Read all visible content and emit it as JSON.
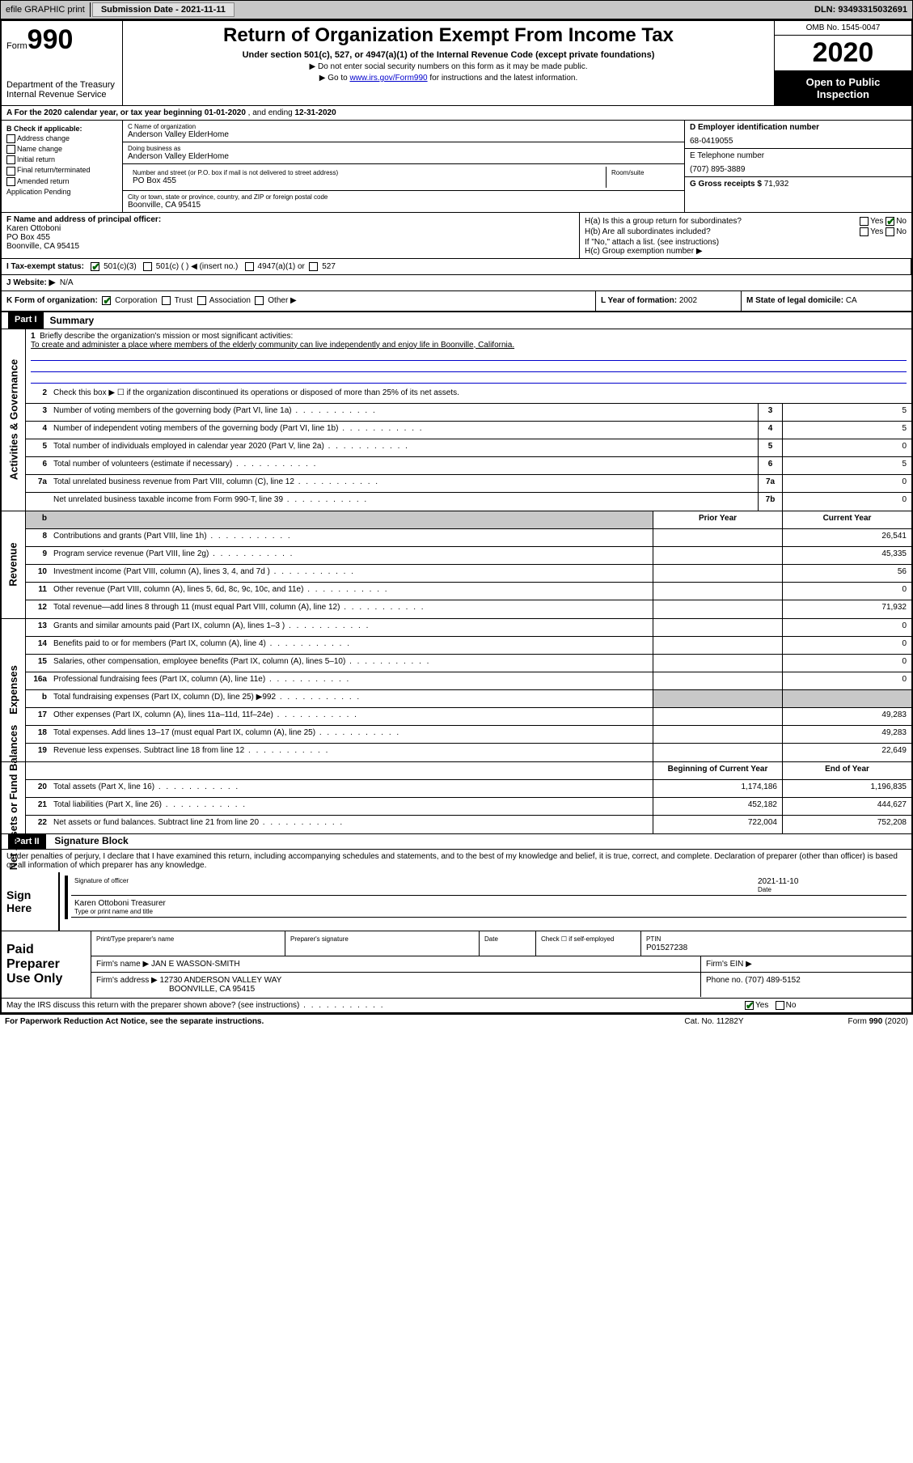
{
  "topbar": {
    "efile": "efile GRAPHIC print",
    "subdate_label": "Submission Date - ",
    "subdate": "2021-11-11",
    "dln_label": "DLN: ",
    "dln": "93493315032691"
  },
  "header": {
    "form_small": "Form",
    "form_big": "990",
    "dept1": "Department of the Treasury",
    "dept2": "Internal Revenue Service",
    "title": "Return of Organization Exempt From Income Tax",
    "subtitle": "Under section 501(c), 527, or 4947(a)(1) of the Internal Revenue Code (except private foundations)",
    "note1": "▶ Do not enter social security numbers on this form as it may be made public.",
    "note2_a": "▶ Go to ",
    "note2_link": "www.irs.gov/Form990",
    "note2_b": " for instructions and the latest information.",
    "omb": "OMB No. 1545-0047",
    "year": "2020",
    "open": "Open to Public Inspection"
  },
  "secA": {
    "text_a": "A For the 2020 calendar year, or tax year beginning ",
    "begin": "01-01-2020",
    "text_b": " , and ending ",
    "end": "12-31-2020"
  },
  "secB": {
    "label": "B Check if applicable:",
    "items": [
      "Address change",
      "Name change",
      "Initial return",
      "Final return/terminated",
      "Amended return",
      "Application Pending"
    ]
  },
  "secC": {
    "name_label": "C Name of organization",
    "name": "Anderson Valley ElderHome",
    "dba_label": "Doing business as",
    "dba": "Anderson Valley ElderHome",
    "addr_label": "Number and street (or P.O. box if mail is not delivered to street address)",
    "room_label": "Room/suite",
    "addr": "PO Box 455",
    "city_label": "City or town, state or province, country, and ZIP or foreign postal code",
    "city": "Boonville, CA  95415"
  },
  "secD": {
    "ein_label": "D Employer identification number",
    "ein": "68-0419055",
    "tel_label": "E Telephone number",
    "tel": "(707) 895-3889",
    "gross_label": "G Gross receipts $ ",
    "gross": "71,932"
  },
  "secF": {
    "label": "F  Name and address of principal officer:",
    "name": "Karen Ottoboni",
    "addr1": "PO Box 455",
    "addr2": "Boonville, CA  95415"
  },
  "secH": {
    "ha_label": "H(a)  Is this a group return for subordinates?",
    "hb_label": "H(b)  Are all subordinates included?",
    "hb_note": "If \"No,\" attach a list. (see instructions)",
    "hc_label": "H(c)  Group exemption number ▶",
    "yes": "Yes",
    "no": "No"
  },
  "secI": {
    "label": "I  Tax-exempt status:",
    "c3": "501(c)(3)",
    "c": "501(c) (  ) ◀ (insert no.)",
    "a1": "4947(a)(1) or",
    "s527": "527"
  },
  "secJ": {
    "label": "J  Website: ▶",
    "val": "N/A"
  },
  "secK": {
    "label": "K Form of organization:",
    "corp": "Corporation",
    "trust": "Trust",
    "assoc": "Association",
    "other": "Other ▶"
  },
  "secL": {
    "label": "L Year of formation: ",
    "val": "2002"
  },
  "secM": {
    "label": "M State of legal domicile: ",
    "val": "CA"
  },
  "part1": {
    "label": "Part I",
    "title": "Summary",
    "side1": "Activities & Governance",
    "side2": "Revenue",
    "side3": "Expenses",
    "side4": "Net Assets or Fund Balances",
    "l1_label": "Briefly describe the organization's mission or most significant activities:",
    "l1_text": "To create and administer a place where members of the elderly community can live independently and enjoy life in Boonville, California.",
    "l2": "Check this box ▶ ☐ if the organization discontinued its operations or disposed of more than 25% of its net assets.",
    "prior_hdr": "Prior Year",
    "curr_hdr": "Current Year",
    "boy_hdr": "Beginning of Current Year",
    "eoy_hdr": "End of Year",
    "lines_gov": [
      {
        "n": "3",
        "t": "Number of voting members of the governing body (Part VI, line 1a)",
        "box": "3",
        "v": "5"
      },
      {
        "n": "4",
        "t": "Number of independent voting members of the governing body (Part VI, line 1b)",
        "box": "4",
        "v": "5"
      },
      {
        "n": "5",
        "t": "Total number of individuals employed in calendar year 2020 (Part V, line 2a)",
        "box": "5",
        "v": "0"
      },
      {
        "n": "6",
        "t": "Total number of volunteers (estimate if necessary)",
        "box": "6",
        "v": "5"
      },
      {
        "n": "7a",
        "t": "Total unrelated business revenue from Part VIII, column (C), line 12",
        "box": "7a",
        "v": "0"
      },
      {
        "n": "",
        "t": "Net unrelated business taxable income from Form 990-T, line 39",
        "box": "7b",
        "v": "0"
      }
    ],
    "lines_rev": [
      {
        "n": "8",
        "t": "Contributions and grants (Part VIII, line 1h)",
        "p": "",
        "c": "26,541"
      },
      {
        "n": "9",
        "t": "Program service revenue (Part VIII, line 2g)",
        "p": "",
        "c": "45,335"
      },
      {
        "n": "10",
        "t": "Investment income (Part VIII, column (A), lines 3, 4, and 7d )",
        "p": "",
        "c": "56"
      },
      {
        "n": "11",
        "t": "Other revenue (Part VIII, column (A), lines 5, 6d, 8c, 9c, 10c, and 11e)",
        "p": "",
        "c": "0"
      },
      {
        "n": "12",
        "t": "Total revenue—add lines 8 through 11 (must equal Part VIII, column (A), line 12)",
        "p": "",
        "c": "71,932"
      }
    ],
    "lines_exp": [
      {
        "n": "13",
        "t": "Grants and similar amounts paid (Part IX, column (A), lines 1–3 )",
        "p": "",
        "c": "0"
      },
      {
        "n": "14",
        "t": "Benefits paid to or for members (Part IX, column (A), line 4)",
        "p": "",
        "c": "0"
      },
      {
        "n": "15",
        "t": "Salaries, other compensation, employee benefits (Part IX, column (A), lines 5–10)",
        "p": "",
        "c": "0"
      },
      {
        "n": "16a",
        "t": "Professional fundraising fees (Part IX, column (A), line 11e)",
        "p": "",
        "c": "0"
      },
      {
        "n": "b",
        "t": "Total fundraising expenses (Part IX, column (D), line 25) ▶992",
        "p": "shaded",
        "c": "shaded"
      },
      {
        "n": "17",
        "t": "Other expenses (Part IX, column (A), lines 11a–11d, 11f–24e)",
        "p": "",
        "c": "49,283"
      },
      {
        "n": "18",
        "t": "Total expenses. Add lines 13–17 (must equal Part IX, column (A), line 25)",
        "p": "",
        "c": "49,283"
      },
      {
        "n": "19",
        "t": "Revenue less expenses. Subtract line 18 from line 12",
        "p": "",
        "c": "22,649"
      }
    ],
    "lines_net": [
      {
        "n": "20",
        "t": "Total assets (Part X, line 16)",
        "p": "1,174,186",
        "c": "1,196,835"
      },
      {
        "n": "21",
        "t": "Total liabilities (Part X, line 26)",
        "p": "452,182",
        "c": "444,627"
      },
      {
        "n": "22",
        "t": "Net assets or fund balances. Subtract line 21 from line 20",
        "p": "722,004",
        "c": "752,208"
      }
    ]
  },
  "part2": {
    "label": "Part II",
    "title": "Signature Block",
    "penalty": "Under penalties of perjury, I declare that I have examined this return, including accompanying schedules and statements, and to the best of my knowledge and belief, it is true, correct, and complete. Declaration of preparer (other than officer) is based on all information of which preparer has any knowledge."
  },
  "sign": {
    "label": "Sign Here",
    "sig_label": "Signature of officer",
    "date": "2021-11-10",
    "date_label": "Date",
    "name": "Karen Ottoboni  Treasurer",
    "name_label": "Type or print name and title"
  },
  "prep": {
    "label": "Paid Preparer Use Only",
    "h1": "Print/Type preparer's name",
    "h2": "Preparer's signature",
    "h3": "Date",
    "h4": "Check ☐ if self-employed",
    "h5_label": "PTIN",
    "h5": "P01527238",
    "firm_label": "Firm's name    ▶ ",
    "firm": "JAN E WASSON-SMITH",
    "ein_label": "Firm's EIN ▶",
    "addr_label": "Firm's address ▶ ",
    "addr1": "12730 ANDERSON VALLEY WAY",
    "addr2": "BOONVILLE, CA  95415",
    "phone_label": "Phone no. ",
    "phone": "(707) 489-5152"
  },
  "bottom": {
    "discuss": "May the IRS discuss this return with the preparer shown above? (see instructions)",
    "yes": "Yes",
    "no": "No",
    "paperwork": "For Paperwork Reduction Act Notice, see the separate instructions.",
    "cat": "Cat. No. 11282Y",
    "form": "Form 990 (2020)"
  }
}
